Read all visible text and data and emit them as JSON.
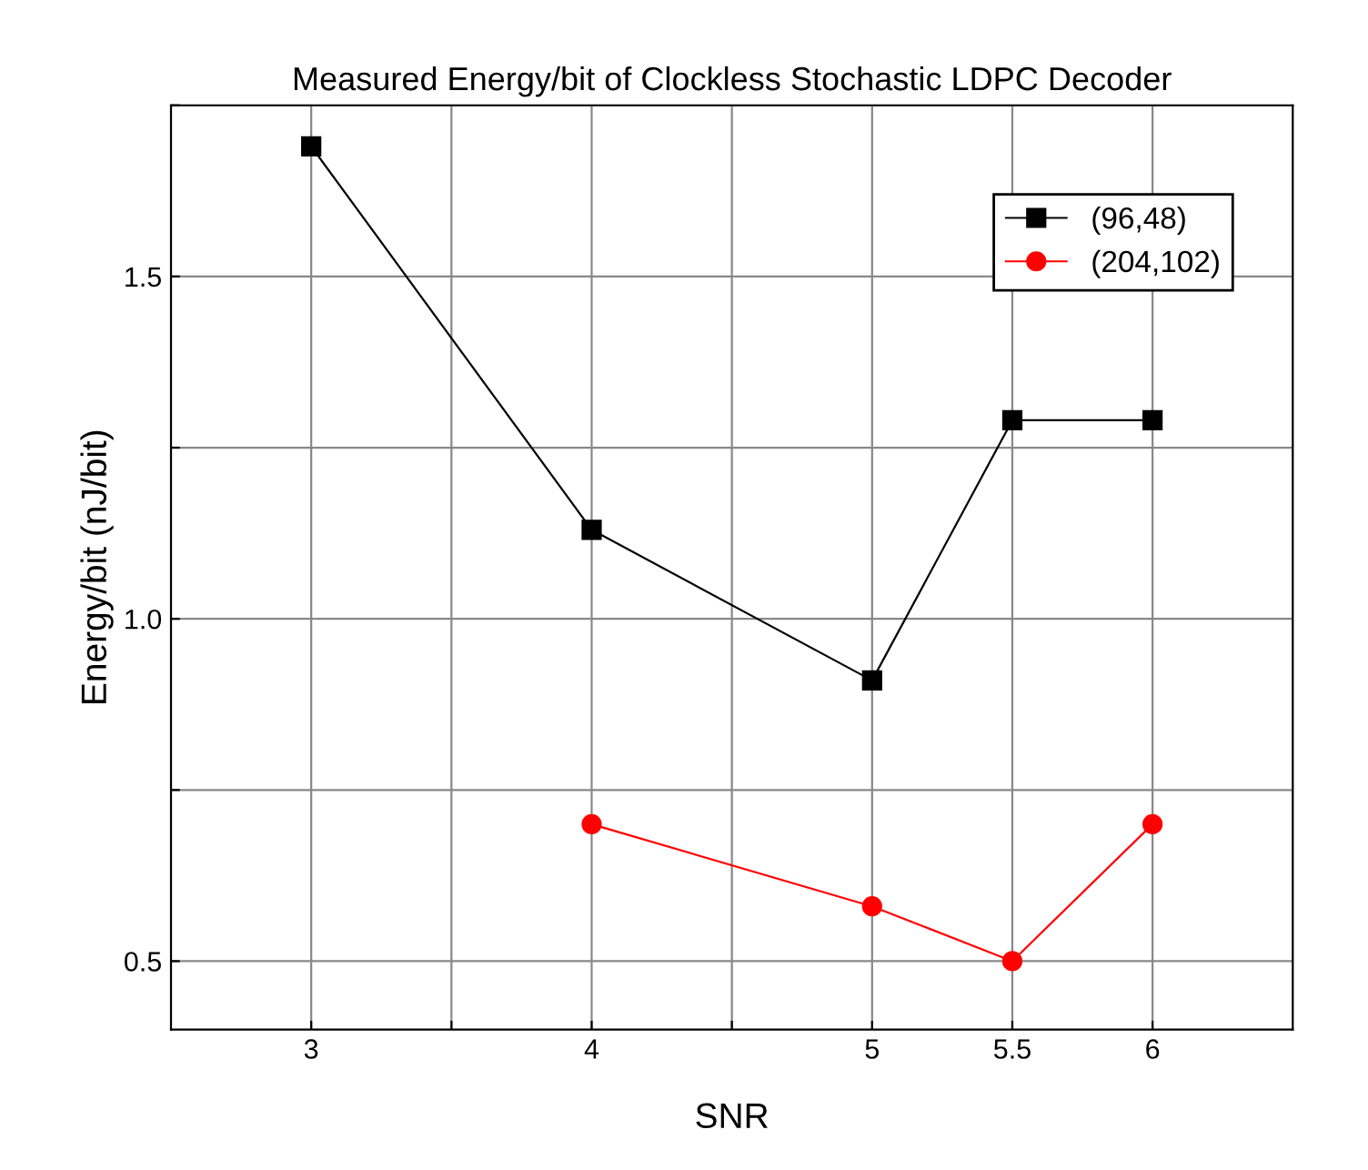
{
  "chart_data": {
    "type": "line",
    "title": "Measured Energy/bit of Clockless Stochastic LDPC Decoder",
    "xlabel": "SNR",
    "ylabel": "Energy/bit (nJ/bit)",
    "xlim": [
      2.5,
      6.5
    ],
    "xticks": [
      3,
      {
        "value": 3.5,
        "label": null
      },
      4,
      {
        "value": 4.5,
        "label": null
      },
      5,
      5.5,
      6
    ],
    "ylim": [
      0.4,
      1.75
    ],
    "yticks": [
      {
        "value": 0.5,
        "label": "0.5"
      },
      {
        "value": 0.75,
        "label": null
      },
      {
        "value": 1.0,
        "label": "1.0"
      },
      {
        "value": 1.25,
        "label": null
      },
      {
        "value": 1.5,
        "label": "1.5"
      },
      {
        "value": 1.75,
        "label": null
      }
    ],
    "series": [
      {
        "name": "(96,48)",
        "color": "#000000",
        "marker": "square",
        "x": [
          3,
          4,
          5,
          5.5,
          6
        ],
        "values": [
          1.69,
          1.13,
          0.91,
          1.29,
          1.29
        ]
      },
      {
        "name": "(204,102)",
        "color": "#ff0000",
        "marker": "circle",
        "x": [
          4,
          5,
          5.5,
          6
        ],
        "values": [
          0.7,
          0.58,
          0.5,
          0.7
        ]
      }
    ],
    "grid": true,
    "legend": "top right"
  }
}
